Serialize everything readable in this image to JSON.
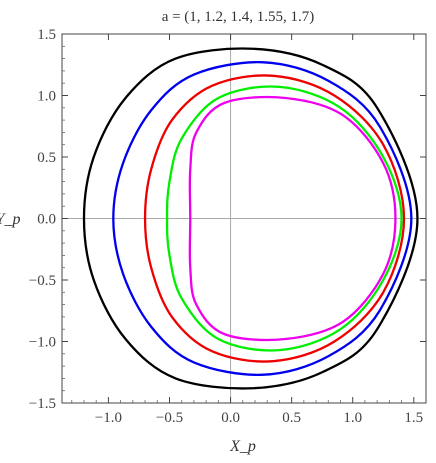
{
  "chart_data": {
    "type": "line",
    "title": "a = (1, 1.2, 1.4, 1.55, 1.7)",
    "xlabel": "X_p",
    "ylabel": "Y_p",
    "xlim": [
      -1.38,
      1.6
    ],
    "ylim": [
      -1.5,
      1.5
    ],
    "xticks": [
      -1.0,
      -0.5,
      0.0,
      0.5,
      1.0,
      1.5
    ],
    "xtick_labels": [
      "−1.0",
      "−0.5",
      "0.0",
      "0.5",
      "1.0",
      "1.5"
    ],
    "yticks": [
      -1.5,
      -1.0,
      -0.5,
      0.0,
      0.5,
      1.0,
      1.5
    ],
    "ytick_labels": [
      "−1.5",
      "−1.0",
      "−0.5",
      "0.0",
      "0.5",
      "1.0",
      "1.5"
    ],
    "grid": false,
    "crosshair_axes": true,
    "series": [
      {
        "color": "#000000",
        "points": [
          [
            -1.2,
            0.0
          ],
          [
            -1.12,
            0.5
          ],
          [
            -0.86,
            0.98
          ],
          [
            -0.45,
            1.3
          ],
          [
            0.18,
            1.38
          ],
          [
            0.75,
            1.25
          ],
          [
            1.2,
            0.9
          ],
          [
            1.53,
            0.0
          ],
          [
            1.2,
            -0.9
          ],
          [
            0.75,
            -1.25
          ],
          [
            0.18,
            -1.38
          ],
          [
            -0.45,
            -1.3
          ],
          [
            -0.86,
            -0.98
          ],
          [
            -1.12,
            -0.5
          ],
          [
            -1.2,
            0.0
          ]
        ]
      },
      {
        "color": "#0000ee",
        "points": [
          [
            -0.96,
            0.0
          ],
          [
            -0.88,
            0.45
          ],
          [
            -0.65,
            0.88
          ],
          [
            -0.3,
            1.17
          ],
          [
            0.27,
            1.27
          ],
          [
            0.8,
            1.12
          ],
          [
            1.22,
            0.75
          ],
          [
            1.48,
            0.0
          ],
          [
            1.22,
            -0.75
          ],
          [
            0.8,
            -1.12
          ],
          [
            0.27,
            -1.27
          ],
          [
            -0.3,
            -1.17
          ],
          [
            -0.65,
            -0.88
          ],
          [
            -0.88,
            -0.45
          ],
          [
            -0.96,
            0.0
          ]
        ]
      },
      {
        "color": "#ee0000",
        "points": [
          [
            -0.7,
            0.0
          ],
          [
            -0.65,
            0.4
          ],
          [
            -0.48,
            0.8
          ],
          [
            -0.15,
            1.08
          ],
          [
            0.35,
            1.16
          ],
          [
            0.85,
            1.0
          ],
          [
            1.25,
            0.6
          ],
          [
            1.42,
            0.0
          ],
          [
            1.25,
            -0.6
          ],
          [
            0.85,
            -1.0
          ],
          [
            0.35,
            -1.16
          ],
          [
            -0.15,
            -1.08
          ],
          [
            -0.48,
            -0.8
          ],
          [
            -0.65,
            -0.4
          ],
          [
            -0.7,
            0.0
          ]
        ]
      },
      {
        "color": "#00ee00",
        "points": [
          [
            -0.52,
            0.0
          ],
          [
            -0.5,
            0.3
          ],
          [
            -0.4,
            0.65
          ],
          [
            -0.1,
            0.98
          ],
          [
            0.4,
            1.07
          ],
          [
            0.9,
            0.9
          ],
          [
            1.25,
            0.5
          ],
          [
            1.4,
            0.0
          ],
          [
            1.25,
            -0.5
          ],
          [
            0.9,
            -0.9
          ],
          [
            0.4,
            -1.07
          ],
          [
            -0.1,
            -0.98
          ],
          [
            -0.4,
            -0.65
          ],
          [
            -0.5,
            -0.3
          ],
          [
            -0.52,
            0.0
          ]
        ]
      },
      {
        "color": "#ee00ee",
        "points": [
          [
            -0.33,
            0.0
          ],
          [
            -0.33,
            0.4
          ],
          [
            -0.28,
            0.7
          ],
          [
            -0.05,
            0.94
          ],
          [
            0.45,
            0.98
          ],
          [
            0.92,
            0.84
          ],
          [
            1.25,
            0.45
          ],
          [
            1.35,
            0.0
          ],
          [
            1.25,
            -0.45
          ],
          [
            0.92,
            -0.84
          ],
          [
            0.45,
            -0.98
          ],
          [
            -0.05,
            -0.94
          ],
          [
            -0.28,
            -0.7
          ],
          [
            -0.33,
            -0.4
          ],
          [
            -0.33,
            0.0
          ]
        ]
      }
    ]
  }
}
